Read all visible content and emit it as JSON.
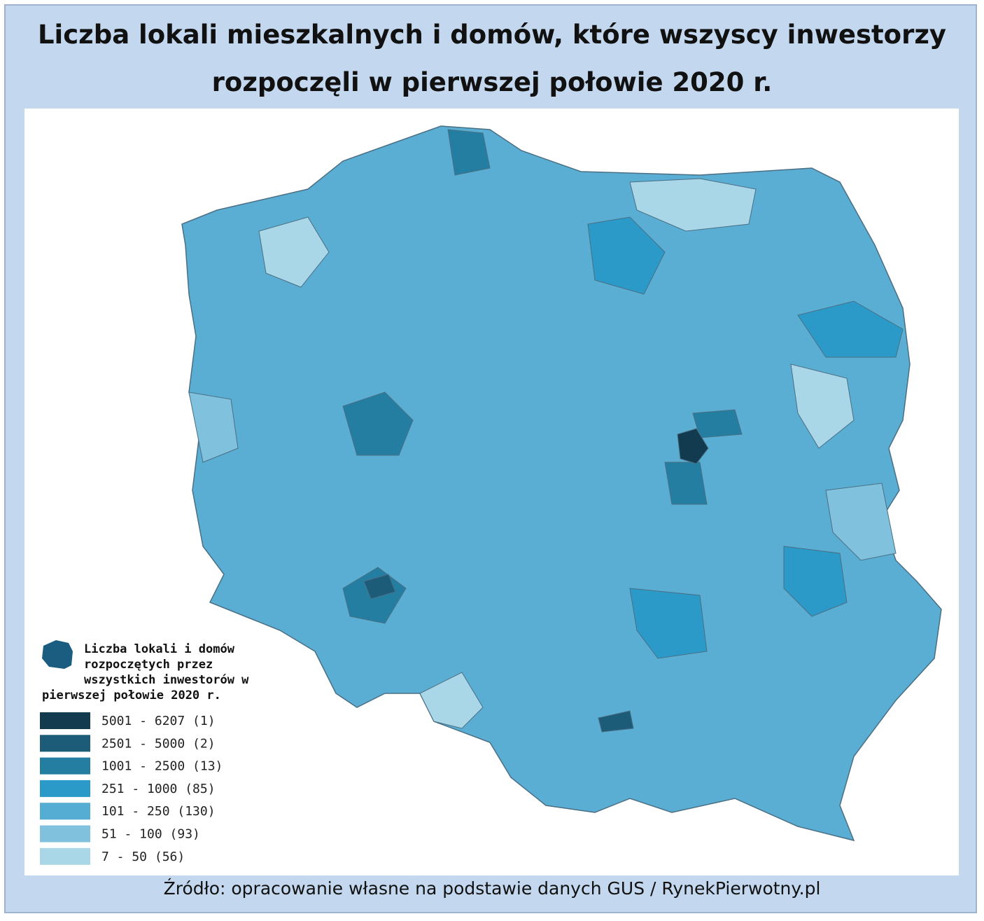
{
  "header": {
    "title_lines": [
      "Liczba lokali mieszkalnych i domów, które wszyscy inwestorzy",
      "rozpoczęli w pierwszej połowie 2020 r."
    ]
  },
  "legend": {
    "title_lines": [
      "Liczba lokali i domów",
      "rozpoczętych przez",
      "wszystkich inwestorów w",
      "pierwszej połowie 2020 r."
    ],
    "items": [
      {
        "label": "5001 - 6207 (1)",
        "color": "#133b4f"
      },
      {
        "label": "2501 - 5000 (2)",
        "color": "#1d5c79"
      },
      {
        "label": "1001 - 2500 (13)",
        "color": "#237ea2"
      },
      {
        "label": "251 - 1000 (85)",
        "color": "#2b9ac9"
      },
      {
        "label": "101 - 250 (130)",
        "color": "#55add3"
      },
      {
        "label": "51 - 100 (93)",
        "color": "#80c1de"
      },
      {
        "label": "7 - 50 (56)",
        "color": "#a9d7e8"
      }
    ]
  },
  "footer": {
    "source": "Źródło: opracowanie własne na podstawie danych GUS / RynekPierwotny.pl"
  }
}
